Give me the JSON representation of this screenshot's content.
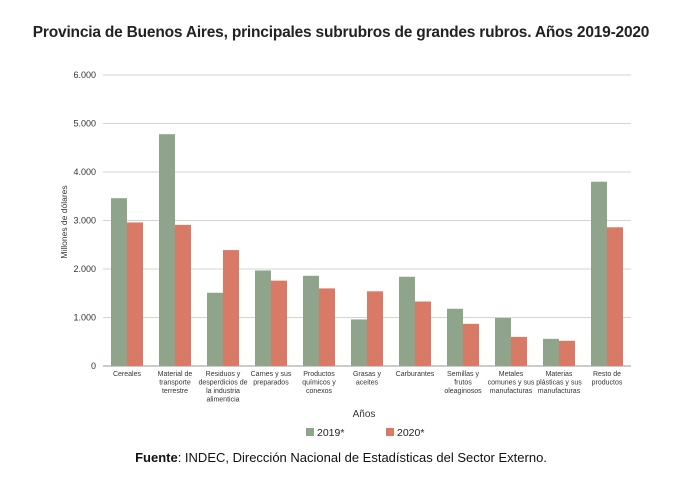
{
  "chart_data": {
    "type": "bar",
    "title": "Provincia de Buenos Aires, principales subrubros de grandes rubros. Años 2019-2020",
    "xlabel": "Años",
    "ylabel": "Millones de dólares",
    "ylim": [
      0,
      6000
    ],
    "yticks": [
      "0",
      "1.000",
      "2.000",
      "3.000",
      "4.000",
      "5.000",
      "6.000"
    ],
    "grid": true,
    "legend": "bottom",
    "categories": [
      [
        "Cereales"
      ],
      [
        "Material de",
        "transporte",
        "terrestre"
      ],
      [
        "Residuos y",
        "desperdicios de",
        "la industria",
        "alimenticia"
      ],
      [
        "Carnes y sus",
        "preparados"
      ],
      [
        "Productos",
        "químicos y",
        "conexos"
      ],
      [
        "Grasas y",
        "aceites"
      ],
      [
        "Carburantes"
      ],
      [
        "Semillas y",
        "frutos",
        "oleaginosos"
      ],
      [
        "Metales",
        "comunes y sus",
        "manufacturas"
      ],
      [
        "Materias",
        "plásticas y sus",
        "manufacturas"
      ],
      [
        "Resto de",
        "productos"
      ]
    ],
    "series": [
      {
        "name": "2019*",
        "color": "#8fa58b",
        "values": [
          3460,
          4780,
          1510,
          1970,
          1860,
          960,
          1840,
          1180,
          990,
          560,
          3800
        ]
      },
      {
        "name": "2020*",
        "color": "#d97a66",
        "values": [
          2960,
          2910,
          2390,
          1760,
          1600,
          1540,
          1330,
          870,
          600,
          520,
          2860
        ]
      }
    ]
  },
  "source": {
    "label": "Fuente",
    "text": ": INDEC, Dirección Nacional de Estadísticas del Sector Externo."
  }
}
